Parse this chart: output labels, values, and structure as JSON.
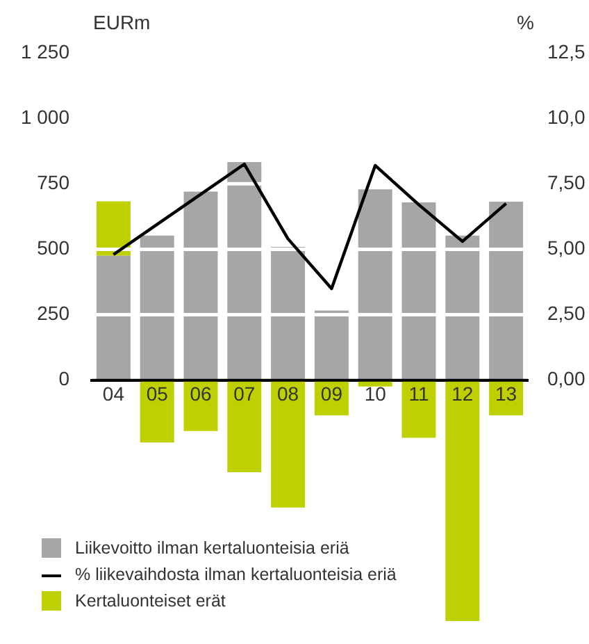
{
  "chart_data": {
    "type": "bar",
    "stacked": true,
    "ylabel": "EURm",
    "y2label": "%",
    "categories": [
      "04",
      "05",
      "06",
      "07",
      "08",
      "09",
      "10",
      "11",
      "12",
      "13"
    ],
    "series": [
      {
        "name": "Liikevoitto ilman kertaluonteisia eriä",
        "color": "#a6a6a6",
        "values": [
          475,
          552,
          720,
          833,
          509,
          266,
          729,
          679,
          552,
          682
        ]
      },
      {
        "name": "% liikevaihdosta ilman kertaluonteisia eriä",
        "type": "line",
        "axis": "y2",
        "color": "#000000",
        "values": [
          4.8,
          5.95,
          7.1,
          8.25,
          5.4,
          3.5,
          8.2,
          6.7,
          5.3,
          6.75
        ]
      },
      {
        "name": "Kertaluonteiset erät",
        "color": "#bfd000",
        "values": [
          208,
          -238,
          -194,
          -351,
          -486,
          -134,
          -24,
          -220,
          -920,
          -134
        ]
      }
    ],
    "ylim": [
      -920,
      1250
    ],
    "yticks": [
      0,
      250,
      500,
      750,
      {
        "value": 1000,
        "label": "1 000"
      },
      {
        "value": 1250,
        "label": "1 250"
      }
    ],
    "y2lim": [
      -9.2,
      12.5
    ],
    "y2ticks": [
      {
        "value": 0,
        "label": "0,00"
      },
      {
        "value": 2.5,
        "label": "2,50"
      },
      {
        "value": 5,
        "label": "5,00"
      },
      {
        "value": 7.5,
        "label": "7,50"
      },
      {
        "value": 10,
        "label": "10,0"
      },
      {
        "value": 12.5,
        "label": "12,5"
      }
    ],
    "grid": "y",
    "legend": "bottom",
    "marker": "none",
    "line_style": "solid"
  }
}
